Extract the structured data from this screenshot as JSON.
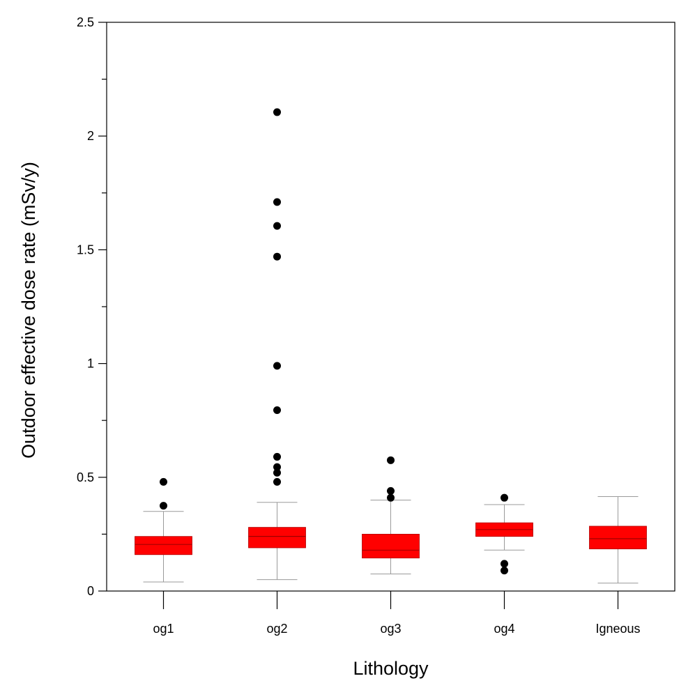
{
  "chart_data": {
    "type": "box",
    "title": "",
    "xlabel": "Lithology",
    "ylabel": "Outdoor effective dose rate (mSv/y)",
    "ylim": [
      0,
      2.5
    ],
    "y_major_ticks": [
      0,
      0.5,
      1,
      1.5,
      2,
      2.5
    ],
    "y_tick_labels": [
      "0",
      "0.5",
      "1",
      "1.5",
      "2",
      "2.5"
    ],
    "y_minor_ticks": [
      0.25,
      0.75,
      1.25,
      1.75,
      2.25
    ],
    "grid": false,
    "legend": "none",
    "box_color": "#ff0000",
    "categories": [
      "og1",
      "og2",
      "og3",
      "og4",
      "Igneous"
    ],
    "boxes": [
      {
        "category": "og1",
        "whisker_low": 0.04,
        "q1": 0.16,
        "median": 0.205,
        "q3": 0.24,
        "whisker_high": 0.35,
        "outliers": [
          0.375,
          0.48
        ]
      },
      {
        "category": "og2",
        "whisker_low": 0.05,
        "q1": 0.19,
        "median": 0.24,
        "q3": 0.28,
        "whisker_high": 0.39,
        "outliers": [
          0.48,
          0.52,
          0.545,
          0.59,
          0.795,
          0.99,
          1.47,
          1.605,
          1.71,
          2.105
        ]
      },
      {
        "category": "og3",
        "whisker_low": 0.075,
        "q1": 0.145,
        "median": 0.18,
        "q3": 0.25,
        "whisker_high": 0.4,
        "outliers": [
          0.41,
          0.44,
          0.575
        ]
      },
      {
        "category": "og4",
        "whisker_low": 0.18,
        "q1": 0.24,
        "median": 0.27,
        "q3": 0.3,
        "whisker_high": 0.38,
        "outliers": [
          0.09,
          0.12,
          0.41
        ]
      },
      {
        "category": "Igneous",
        "whisker_low": 0.035,
        "q1": 0.185,
        "median": 0.23,
        "q3": 0.285,
        "whisker_high": 0.415,
        "outliers": []
      }
    ]
  }
}
